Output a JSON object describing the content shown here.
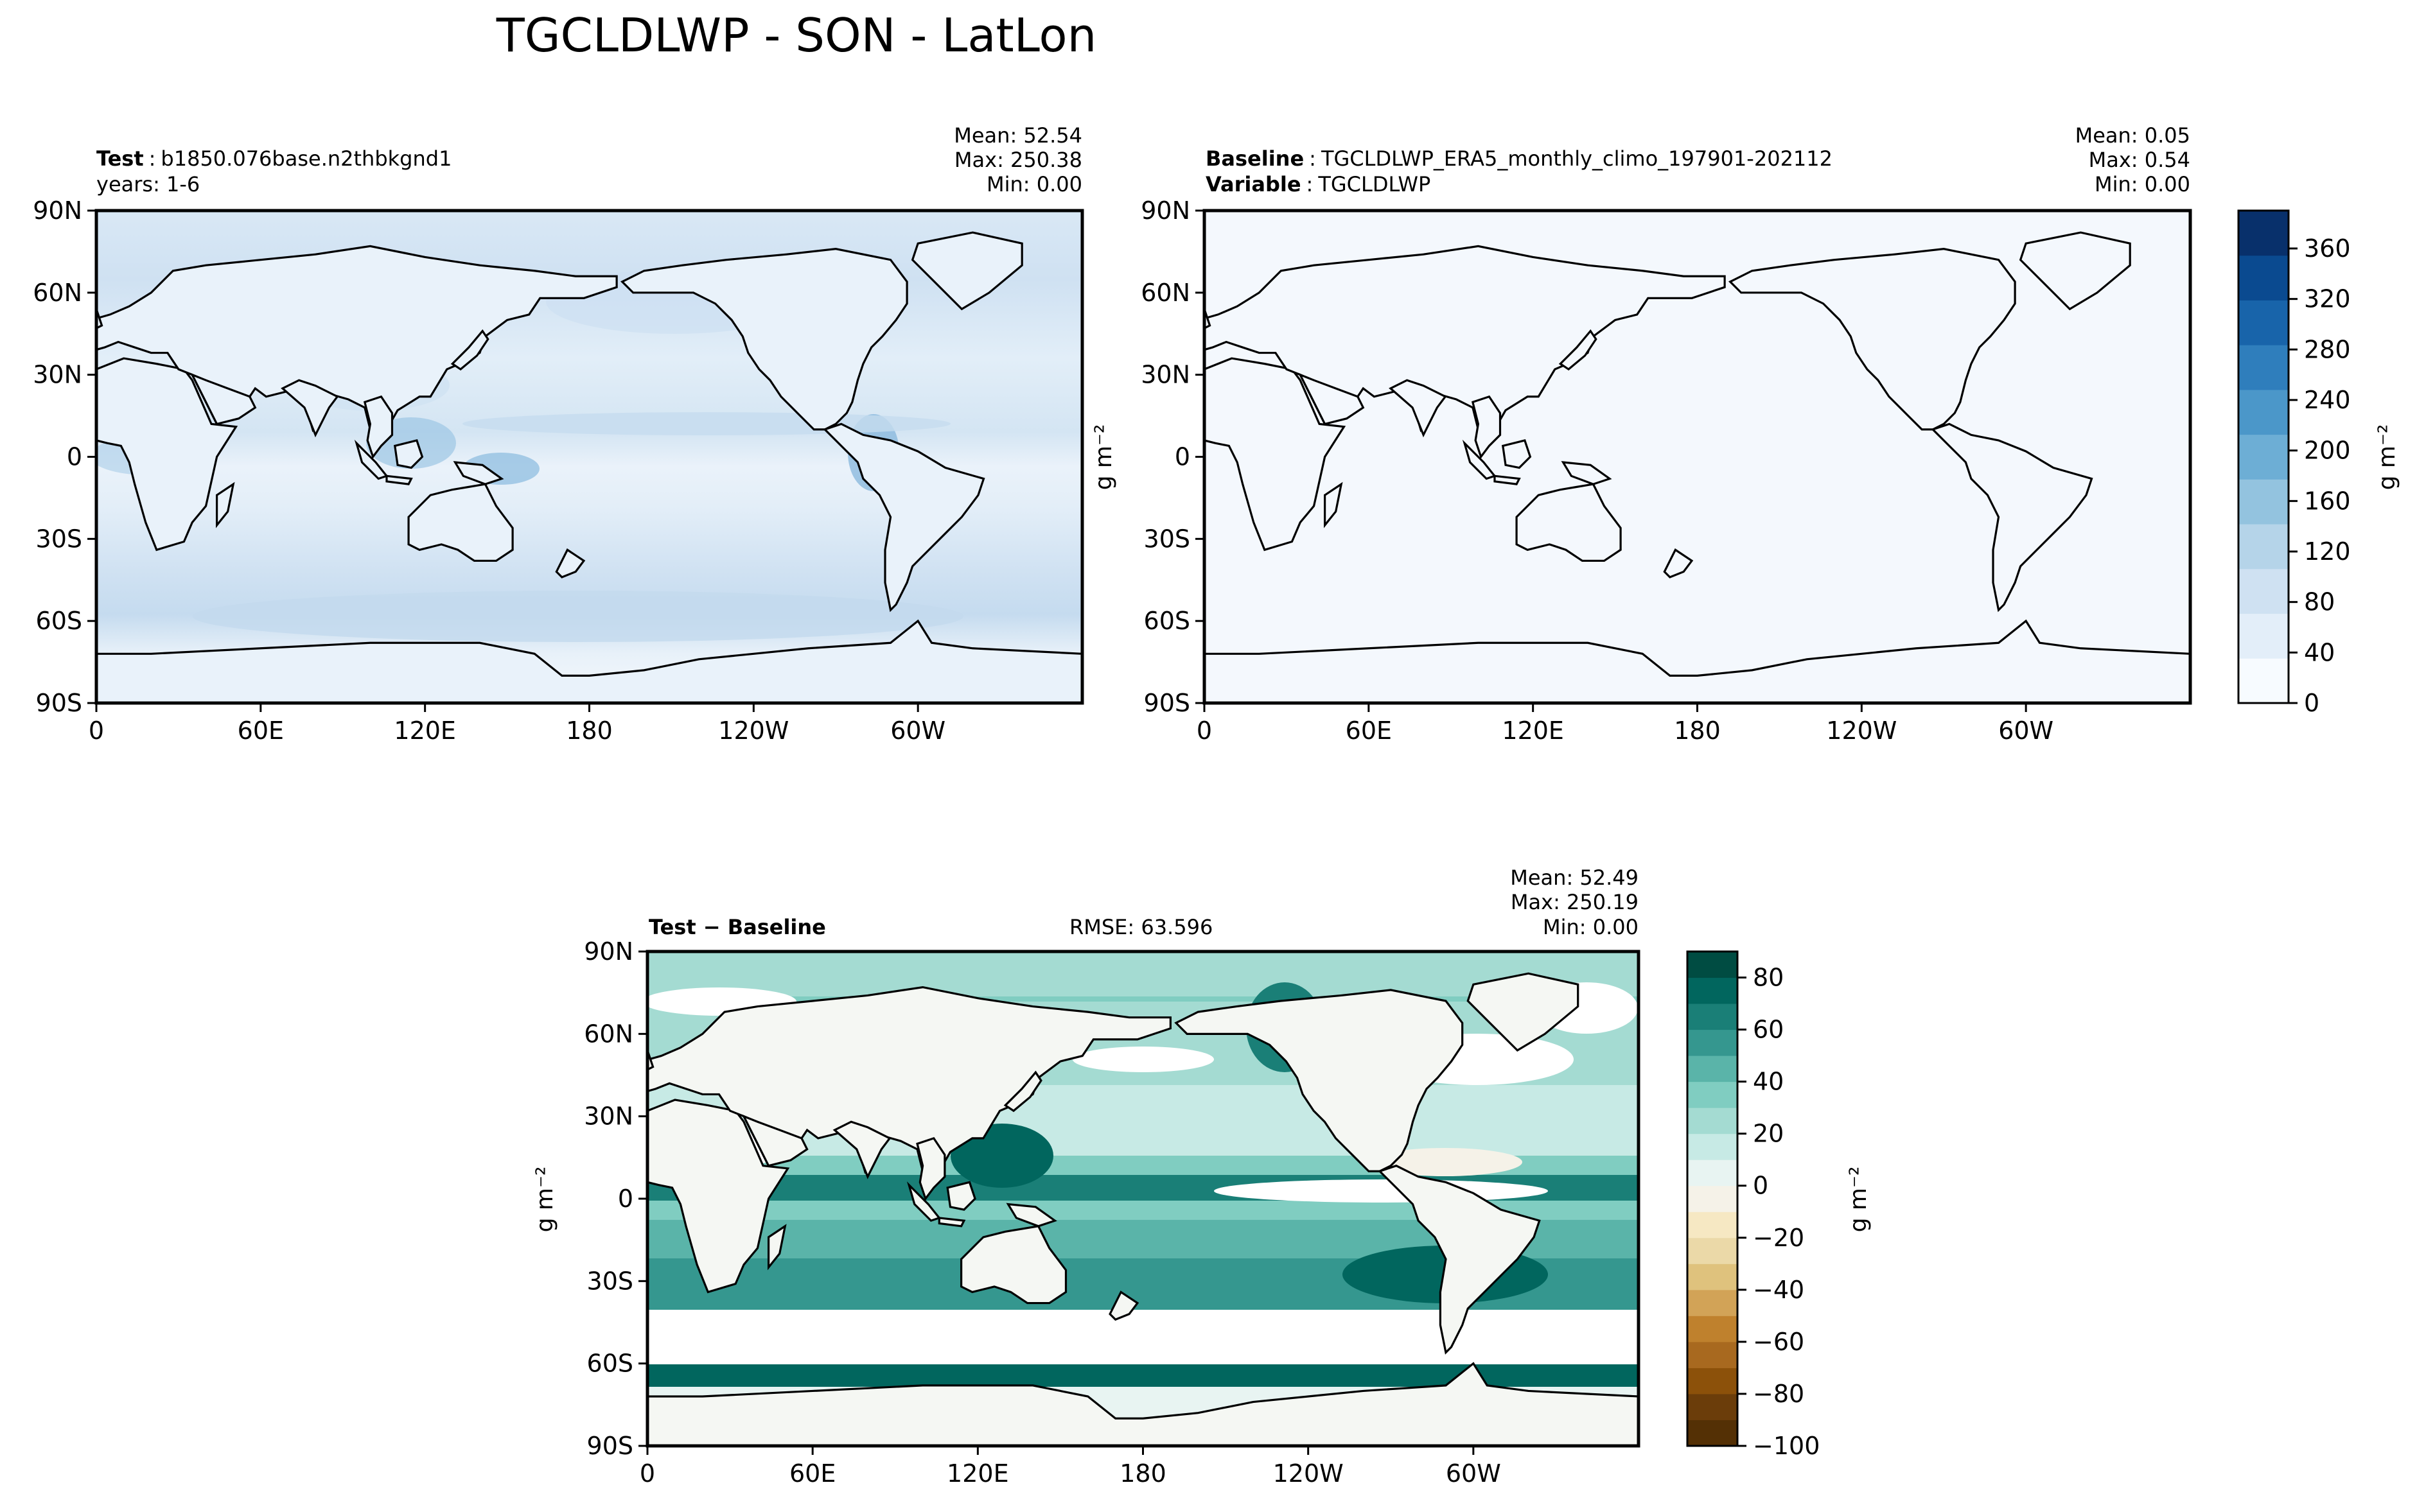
{
  "figure": {
    "title": "TGCLDLWP - SON - LatLon"
  },
  "chart_data": [
    {
      "type": "heatmap",
      "panel": "test",
      "label_bold": "Test",
      "label_text": "b1850.076base.n2thbkgnd1",
      "label_line2": "years: 1-6",
      "stats": {
        "mean": "Mean: 52.54",
        "max": "Max: 250.38",
        "min": "Min:  0.00"
      },
      "x_ticks": [
        "0",
        "60E",
        "120E",
        "180",
        "120W",
        "60W"
      ],
      "y_ticks": [
        "90N",
        "60N",
        "30N",
        "0",
        "30S",
        "60S",
        "90S"
      ],
      "xlim": [
        0,
        360
      ],
      "ylim": [
        -90,
        90
      ],
      "colormap": "Blues",
      "field": "cloud liquid water path, light blue over ocean, higher in storm tracks and ITCZ"
    },
    {
      "type": "heatmap",
      "panel": "baseline",
      "label_bold": "Baseline",
      "label_text": "TGCLDLWP_ERA5_monthly_climo_197901-202112",
      "label_bold2": "Variable",
      "label_text2": "TGCLDLWP",
      "stats": {
        "mean": "Mean:  0.05",
        "max": "Max:  0.54",
        "min": "Min:  0.00"
      },
      "x_ticks": [
        "0",
        "60E",
        "120E",
        "180",
        "120W",
        "60W"
      ],
      "y_ticks": [
        "90N",
        "60N",
        "30N",
        "0",
        "30S",
        "60S",
        "90S"
      ],
      "xlim": [
        0,
        360
      ],
      "ylim": [
        -90,
        90
      ],
      "colormap": "Blues",
      "ylabel": "g m⁻²"
    },
    {
      "type": "heatmap",
      "panel": "difference",
      "label_bold": "Test − Baseline",
      "rmse": "RMSE: 63.596",
      "stats": {
        "mean": "Mean: 52.49",
        "max": "Max: 250.19",
        "min": "Min:  0.00"
      },
      "x_ticks": [
        "0",
        "60E",
        "120E",
        "180",
        "120W",
        "60W"
      ],
      "y_ticks": [
        "90N",
        "60N",
        "30N",
        "0",
        "30S",
        "60S",
        "90S"
      ],
      "xlim": [
        0,
        360
      ],
      "ylim": [
        -90,
        90
      ],
      "colormap": "BrBG",
      "ylabel": "g m⁻²"
    }
  ],
  "colorbars": {
    "top": {
      "ticks": [
        "0",
        "40",
        "80",
        "120",
        "160",
        "200",
        "240",
        "280",
        "320",
        "360"
      ],
      "values": [
        0,
        40,
        80,
        120,
        160,
        200,
        240,
        280,
        320,
        360
      ],
      "vmin": 0,
      "vmax": 390,
      "label": "g m⁻²",
      "colors": [
        "#f7fbff",
        "#e3eef9",
        "#cfe1f2",
        "#b5d4e9",
        "#93c3df",
        "#6daed5",
        "#4b97c9",
        "#2f7ebc",
        "#1864aa",
        "#0a4a90",
        "#08306b"
      ]
    },
    "bottom": {
      "ticks": [
        "80",
        "60",
        "40",
        "20",
        "0",
        "−20",
        "−40",
        "−60",
        "−80",
        "−100"
      ],
      "values": [
        80,
        60,
        40,
        20,
        0,
        -20,
        -40,
        -60,
        -80,
        -100
      ],
      "vmin": -100,
      "vmax": 90,
      "label": "g m⁻²",
      "colors": [
        "#543005",
        "#6b3d0a",
        "#8c510a",
        "#a8691f",
        "#bf812d",
        "#d2a357",
        "#dfc27d",
        "#ebd9a8",
        "#f6e8c3",
        "#f5f2e8",
        "#e8f4f2",
        "#c7eae5",
        "#a4dbd2",
        "#80cdc1",
        "#5ab4a9",
        "#35978f",
        "#1a7f77",
        "#01665e",
        "#004c42"
      ]
    }
  }
}
